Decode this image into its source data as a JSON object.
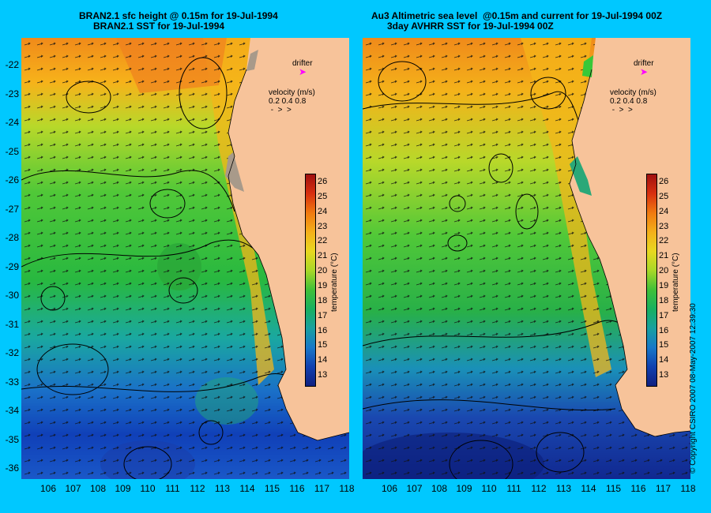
{
  "left_panel": {
    "title_line1": "BRAN2.1 sfc height @ 0.15m for 19-Jul-1994",
    "title_line2": "BRAN2.1 SST for 19-Jul-1994"
  },
  "right_panel": {
    "title_line1": "Au3 Altimetric sea level  @0.15m and current for 19-Jul-1994 00Z",
    "title_line2": "3day AVHRR SST for 19-Jul-1994 00Z"
  },
  "legend": {
    "drifter_label": "drifter",
    "velocity_label": "velocity (m/s)",
    "velocity_values": "0.2 0.4 0.8",
    "colorbar_title": "temperature (°C)",
    "colorbar_ticks": [
      "26",
      "25",
      "24",
      "23",
      "22",
      "21",
      "20",
      "19",
      "18",
      "17",
      "16",
      "15",
      "14",
      "13"
    ]
  },
  "axes": {
    "y_ticks": [
      "-22",
      "-23",
      "-24",
      "-25",
      "-26",
      "-27",
      "-28",
      "-29",
      "-30",
      "-31",
      "-32",
      "-33",
      "-34",
      "-35",
      "-36"
    ],
    "x_ticks": [
      "106",
      "107",
      "108",
      "109",
      "110",
      "111",
      "112",
      "113",
      "114",
      "115",
      "116",
      "117",
      "118"
    ]
  },
  "copyright": "© Copyright CSIRO 2007   08-May-2007 12:39:30",
  "colors": {
    "background": "#00c8ff",
    "land": "#f7c39a",
    "drifter": "#ff00ff"
  }
}
